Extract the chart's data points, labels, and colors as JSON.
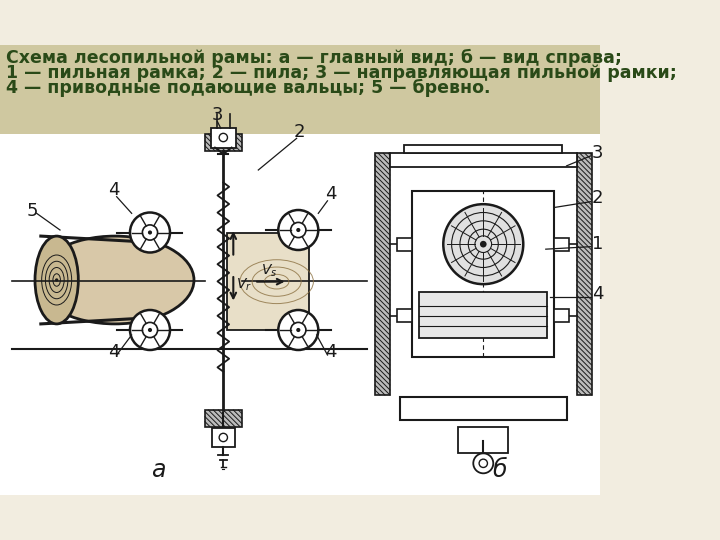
{
  "title_line1": "Схема лесопильной рамы: а — главный вид; б — вид справа;",
  "title_line2": "1 — пильная рамка; 2 — пила; 3 — направляющая пильной рамки;",
  "title_line3": "4 — приводные подающие вальцы; 5 — бревно.",
  "bg_header": "#cfc8a0",
  "bg_main": "#f2ede0",
  "text_color": "#2a4a18",
  "label_color": "#1a1a1a",
  "lc": "#1a1a1a",
  "label_a": "а",
  "label_b": "б"
}
